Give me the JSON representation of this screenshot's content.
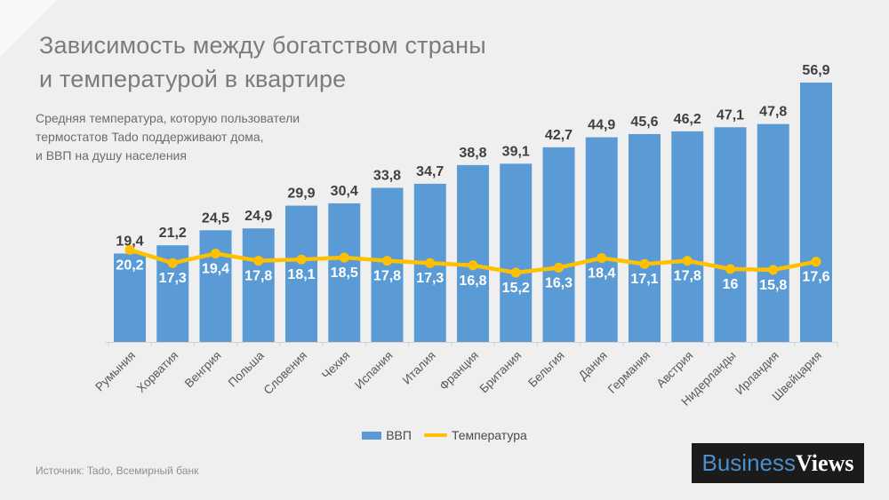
{
  "title": {
    "line1": "Зависимость между богатством страны",
    "line2": "и температурой  в квартире"
  },
  "subtitle": {
    "line1": "Средняя температура,  которую пользователи",
    "line2": "термостатов  Tado поддерживают  дома,",
    "line3": "и ВВП на душу населения"
  },
  "chart_data": {
    "type": "bar",
    "subtype": "bar-line-combo",
    "categories": [
      "Румыния",
      "Хорватия",
      "Венгрия",
      "Польша",
      "Словения",
      "Чехия",
      "Испания",
      "Италия",
      "Франция",
      "Британия",
      "Бельгия",
      "Дания",
      "Германия",
      "Австрия",
      "Нидерланды",
      "Ирландия",
      "Швейцария"
    ],
    "series": [
      {
        "name": "ВВП",
        "type": "bar",
        "color": "#5B9BD5",
        "values": [
          19.4,
          21.2,
          24.5,
          24.9,
          29.9,
          30.4,
          33.8,
          34.7,
          38.8,
          39.1,
          42.7,
          44.9,
          45.6,
          46.2,
          47.1,
          47.8,
          56.9
        ],
        "labels": [
          "19,4",
          "21,2",
          "24,5",
          "24,9",
          "29,9",
          "30,4",
          "33,8",
          "34,7",
          "38,8",
          "39,1",
          "42,7",
          "44,9",
          "45,6",
          "46,2",
          "47,1",
          "47,8",
          "56,9"
        ]
      },
      {
        "name": "Температура",
        "type": "line",
        "color": "#FFC000",
        "values": [
          20.2,
          17.3,
          19.4,
          17.8,
          18.1,
          18.5,
          17.8,
          17.3,
          16.8,
          15.2,
          16.3,
          18.4,
          17.1,
          17.8,
          16,
          15.8,
          17.6
        ],
        "labels": [
          "20,2",
          "17,3",
          "19,4",
          "17,8",
          "18,1",
          "18,5",
          "17,8",
          "17,3",
          "16,8",
          "15,2",
          "16,3",
          "18,4",
          "17,1",
          "17,8",
          "16",
          "15,8",
          "17,6"
        ]
      }
    ],
    "title": "Зависимость между богатством страны и температурой в квартире",
    "xlabel": "",
    "ylabel": "",
    "ylim": [
      0,
      60
    ],
    "grid": false,
    "y_axis_visible": false,
    "value_labels": true,
    "legend_position": "bottom"
  },
  "legend": {
    "items": [
      {
        "label": "ВВП",
        "color": "#5B9BD5",
        "type": "bar"
      },
      {
        "label": "Температура",
        "color": "#FFC000",
        "type": "line"
      }
    ]
  },
  "source": "Источник: Tado, Всемирный банк",
  "logo": {
    "part1": "Business",
    "part2": "Views",
    "part1_color": "#4a8fc7",
    "part2_color": "#ffffff",
    "bg_color": "#1b1b1b"
  },
  "colors": {
    "background": "#efefef",
    "bar": "#5B9BD5",
    "line": "#FFC000",
    "axis": "#d2d2d2"
  }
}
